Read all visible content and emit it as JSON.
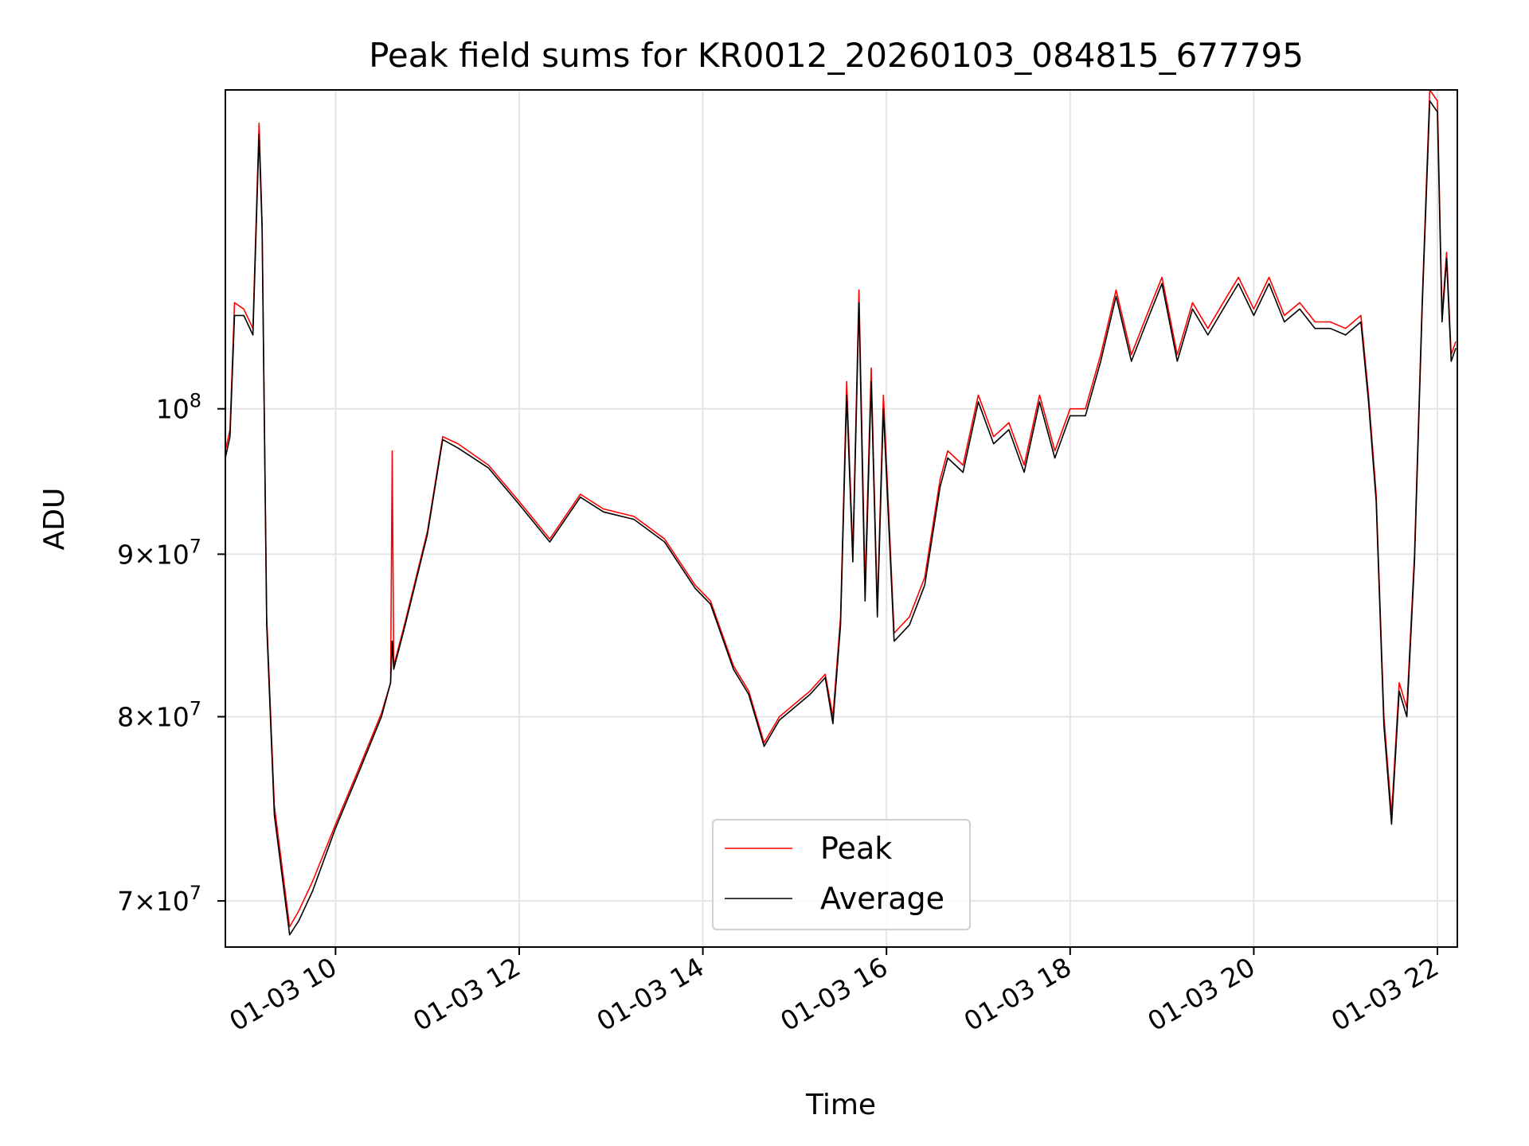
{
  "chart_data": {
    "type": "line",
    "title": "Peak field sums for KR0012_20260103_084815_677795",
    "xlabel": "Time",
    "ylabel": "ADU",
    "x_scale": "time",
    "y_scale": "log",
    "xlim": [
      "01-03 08:48",
      "01-03 22:13"
    ],
    "ylim": [
      67700000,
      126000000
    ],
    "x_ticks": [
      {
        "time": "01-03 10:00",
        "label": "01-03 10"
      },
      {
        "time": "01-03 12:00",
        "label": "01-03 12"
      },
      {
        "time": "01-03 14:00",
        "label": "01-03 14"
      },
      {
        "time": "01-03 16:00",
        "label": "01-03 16"
      },
      {
        "time": "01-03 18:00",
        "label": "01-03 18"
      },
      {
        "time": "01-03 20:00",
        "label": "01-03 20"
      },
      {
        "time": "01-03 22:00",
        "label": "01-03 22"
      }
    ],
    "y_ticks": [
      {
        "value": 70000000,
        "mant": "7",
        "exp": "7"
      },
      {
        "value": 80000000,
        "mant": "8",
        "exp": "7"
      },
      {
        "value": 90000000,
        "mant": "9",
        "exp": "7"
      },
      {
        "value": 100000000,
        "mant": "",
        "exp": "8"
      }
    ],
    "grid": true,
    "legend_position": "lower-center",
    "series": [
      {
        "name": "Peak",
        "color": "#ff0000",
        "x": [
          "01-03 08:48",
          "01-03 08:51",
          "01-03 08:54",
          "01-03 09:00",
          "01-03 09:06",
          "01-03 09:10",
          "01-03 09:12",
          "01-03 09:15",
          "01-03 09:20",
          "01-03 09:30",
          "01-03 09:36",
          "01-03 09:45",
          "01-03 10:00",
          "01-03 10:15",
          "01-03 10:30",
          "01-03 10:36",
          "01-03 10:37",
          "01-03 10:38",
          "01-03 10:45",
          "01-03 11:00",
          "01-03 11:10",
          "01-03 11:20",
          "01-03 11:40",
          "01-03 12:00",
          "01-03 12:20",
          "01-03 12:40",
          "01-03 12:55",
          "01-03 13:15",
          "01-03 13:35",
          "01-03 13:55",
          "01-03 14:05",
          "01-03 14:20",
          "01-03 14:30",
          "01-03 14:40",
          "01-03 14:50",
          "01-03 15:10",
          "01-03 15:20",
          "01-03 15:25",
          "01-03 15:30",
          "01-03 15:34",
          "01-03 15:38",
          "01-03 15:42",
          "01-03 15:46",
          "01-03 15:50",
          "01-03 15:54",
          "01-03 15:58",
          "01-03 16:05",
          "01-03 16:15",
          "01-03 16:25",
          "01-03 16:35",
          "01-03 16:40",
          "01-03 16:50",
          "01-03 17:00",
          "01-03 17:10",
          "01-03 17:20",
          "01-03 17:30",
          "01-03 17:40",
          "01-03 17:50",
          "01-03 18:00",
          "01-03 18:10",
          "01-03 18:20",
          "01-03 18:30",
          "01-03 18:40",
          "01-03 18:50",
          "01-03 19:00",
          "01-03 19:10",
          "01-03 19:20",
          "01-03 19:30",
          "01-03 19:40",
          "01-03 19:50",
          "01-03 20:00",
          "01-03 20:10",
          "01-03 20:20",
          "01-03 20:30",
          "01-03 20:40",
          "01-03 20:50",
          "01-03 21:00",
          "01-03 21:10",
          "01-03 21:15",
          "01-03 21:20",
          "01-03 21:25",
          "01-03 21:30",
          "01-03 21:35",
          "01-03 21:40",
          "01-03 21:45",
          "01-03 21:50",
          "01-03 21:55",
          "01-03 22:00",
          "01-03 22:03",
          "01-03 22:06",
          "01-03 22:09",
          "01-03 22:12"
        ],
        "values": [
          97000000,
          98500000,
          108000000,
          107500000,
          106000000,
          123000000,
          114500000,
          86000000,
          75000000,
          68700000,
          69500000,
          71000000,
          74000000,
          77000000,
          80200000,
          82000000,
          97000000,
          83000000,
          85500000,
          91500000,
          98000000,
          97500000,
          96000000,
          93500000,
          91000000,
          94000000,
          93000000,
          92500000,
          91000000,
          88000000,
          87000000,
          83000000,
          81500000,
          78500000,
          80000000,
          81500000,
          82500000,
          80000000,
          86000000,
          102000000,
          90000000,
          109000000,
          88000000,
          103000000,
          86500000,
          101000000,
          85000000,
          86000000,
          88500000,
          95000000,
          97000000,
          96000000,
          101000000,
          98000000,
          99000000,
          96000000,
          101000000,
          97000000,
          100000000,
          100000000,
          104000000,
          109000000,
          104000000,
          107000000,
          110000000,
          104000000,
          108000000,
          106000000,
          108000000,
          110000000,
          107500000,
          110000000,
          107000000,
          108000000,
          106500000,
          106500000,
          106000000,
          107000000,
          101000000,
          94000000,
          80000000,
          74500000,
          82000000,
          80500000,
          90000000,
          108000000,
          126000000,
          125000000,
          107000000,
          112000000,
          104000000,
          105000000
        ]
      },
      {
        "name": "Average",
        "color": "#000000",
        "x": [
          "01-03 08:48",
          "01-03 08:51",
          "01-03 08:54",
          "01-03 09:00",
          "01-03 09:06",
          "01-03 09:10",
          "01-03 09:12",
          "01-03 09:15",
          "01-03 09:20",
          "01-03 09:30",
          "01-03 09:36",
          "01-03 09:45",
          "01-03 10:00",
          "01-03 10:15",
          "01-03 10:30",
          "01-03 10:36",
          "01-03 10:37",
          "01-03 10:38",
          "01-03 10:45",
          "01-03 11:00",
          "01-03 11:10",
          "01-03 11:20",
          "01-03 11:40",
          "01-03 12:00",
          "01-03 12:20",
          "01-03 12:40",
          "01-03 12:55",
          "01-03 13:15",
          "01-03 13:35",
          "01-03 13:55",
          "01-03 14:05",
          "01-03 14:20",
          "01-03 14:30",
          "01-03 14:40",
          "01-03 14:50",
          "01-03 15:10",
          "01-03 15:20",
          "01-03 15:25",
          "01-03 15:30",
          "01-03 15:34",
          "01-03 15:38",
          "01-03 15:42",
          "01-03 15:46",
          "01-03 15:50",
          "01-03 15:54",
          "01-03 15:58",
          "01-03 16:05",
          "01-03 16:15",
          "01-03 16:25",
          "01-03 16:35",
          "01-03 16:40",
          "01-03 16:50",
          "01-03 17:00",
          "01-03 17:10",
          "01-03 17:20",
          "01-03 17:30",
          "01-03 17:40",
          "01-03 17:50",
          "01-03 18:00",
          "01-03 18:10",
          "01-03 18:20",
          "01-03 18:30",
          "01-03 18:40",
          "01-03 18:50",
          "01-03 19:00",
          "01-03 19:10",
          "01-03 19:20",
          "01-03 19:30",
          "01-03 19:40",
          "01-03 19:50",
          "01-03 20:00",
          "01-03 20:10",
          "01-03 20:20",
          "01-03 20:30",
          "01-03 20:40",
          "01-03 20:50",
          "01-03 21:00",
          "01-03 21:10",
          "01-03 21:15",
          "01-03 21:20",
          "01-03 21:25",
          "01-03 21:30",
          "01-03 21:35",
          "01-03 21:40",
          "01-03 21:45",
          "01-03 21:50",
          "01-03 21:55",
          "01-03 22:00",
          "01-03 22:03",
          "01-03 22:06",
          "01-03 22:09",
          "01-03 22:12"
        ],
        "values": [
          96500000,
          98000000,
          107000000,
          107000000,
          105500000,
          122000000,
          114000000,
          85500000,
          74500000,
          68300000,
          69000000,
          70500000,
          73800000,
          76800000,
          80000000,
          82000000,
          84500000,
          82800000,
          85300000,
          91300000,
          97800000,
          97200000,
          95800000,
          93300000,
          90800000,
          93800000,
          92800000,
          92300000,
          90800000,
          87800000,
          86800000,
          82800000,
          81300000,
          78300000,
          79800000,
          81300000,
          82300000,
          79600000,
          85500000,
          101000000,
          89500000,
          108000000,
          87000000,
          102000000,
          86000000,
          100000000,
          84500000,
          85500000,
          88000000,
          94500000,
          96500000,
          95500000,
          100500000,
          97500000,
          98500000,
          95500000,
          100500000,
          96500000,
          99500000,
          99500000,
          103500000,
          108500000,
          103500000,
          106500000,
          109500000,
          103500000,
          107500000,
          105500000,
          107500000,
          109500000,
          107000000,
          109500000,
          106500000,
          107500000,
          106000000,
          106000000,
          105500000,
          106500000,
          100500000,
          93500000,
          79500000,
          74000000,
          81500000,
          80000000,
          89500000,
          107500000,
          125000000,
          124000000,
          106500000,
          111500000,
          103500000,
          104500000
        ]
      }
    ]
  }
}
